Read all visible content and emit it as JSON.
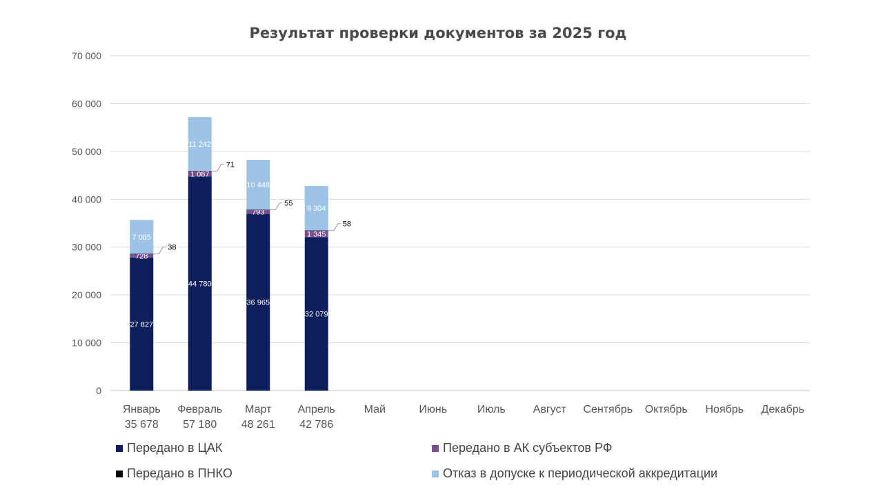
{
  "chart_data": {
    "type": "bar",
    "stacked": true,
    "title": "Результат проверки документов за 2025 год",
    "categories": [
      "Январь",
      "Февраль",
      "Март",
      "Апрель",
      "Май",
      "Июнь",
      "Июль",
      "Август",
      "Сентябрь",
      "Октябрь",
      "Ноябрь",
      "Декабрь"
    ],
    "totals": [
      "35 678",
      "57 180",
      "48 261",
      "42 786",
      "",
      "",
      "",
      "",
      "",
      "",
      "",
      ""
    ],
    "ylim": [
      0,
      70000
    ],
    "yticks": [
      0,
      10000,
      20000,
      30000,
      40000,
      50000,
      60000,
      70000
    ],
    "ytick_labels": [
      "0",
      "10 000",
      "20 000",
      "30 000",
      "40 000",
      "50 000",
      "60 000",
      "70 000"
    ],
    "grid": true,
    "legend_position": "bottom",
    "series": [
      {
        "name": "Передано в ЦАК",
        "color": "#0d1f5c",
        "label_color": "#ffffff",
        "values": [
          27827,
          44780,
          36965,
          32079,
          null,
          null,
          null,
          null,
          null,
          null,
          null,
          null
        ],
        "labels": [
          "27 827",
          "44 780",
          "36 965",
          "32 079"
        ]
      },
      {
        "name": "Передано в АК субъектов РФ",
        "color": "#7b4f8e",
        "label_color": "#ffffff",
        "values": [
          728,
          1087,
          793,
          1345,
          null,
          null,
          null,
          null,
          null,
          null,
          null,
          null
        ],
        "labels": [
          "728",
          "1 087",
          "793",
          "1 345"
        ]
      },
      {
        "name": "Передано в ПНКО",
        "color": "#0a0a0a",
        "label_color": "#000000",
        "values": [
          38,
          71,
          55,
          58,
          null,
          null,
          null,
          null,
          null,
          null,
          null,
          null
        ],
        "labels": [
          "38",
          "71",
          "55",
          "58"
        ]
      },
      {
        "name": "Отказ в допуске к периодической аккредитации",
        "color": "#9dc3e6",
        "label_color": "#ffffff",
        "values": [
          7085,
          11242,
          10448,
          9304,
          null,
          null,
          null,
          null,
          null,
          null,
          null,
          null
        ],
        "labels": [
          "7 085",
          "11 242",
          "10 448",
          "9 304"
        ]
      }
    ]
  }
}
